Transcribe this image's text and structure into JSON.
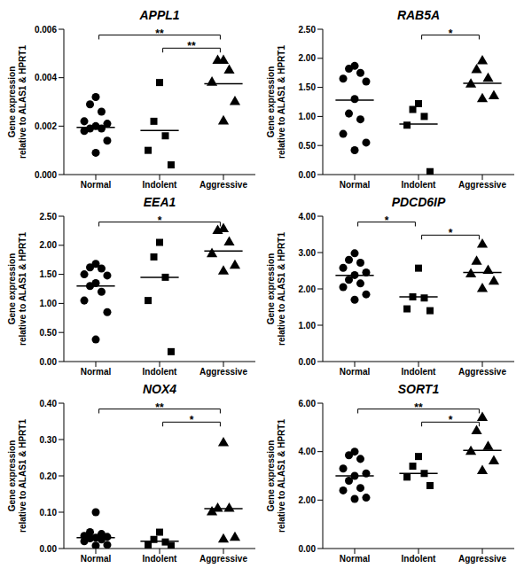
{
  "chart_data": [
    {
      "type": "scatter",
      "title": "APPL1",
      "ylabel": [
        "Gene expression",
        "relative to ALAS1 & HPRT1"
      ],
      "categories": [
        "Normal",
        "Indolent",
        "Aggressive"
      ],
      "markers": [
        "circle",
        "square",
        "triangle"
      ],
      "color": "#000000",
      "values": [
        [
          0.0032,
          0.0029,
          0.0026,
          0.0022,
          0.0021,
          0.002,
          0.0019,
          0.0019,
          0.0018,
          0.0014,
          0.0009
        ],
        [
          0.0038,
          0.0022,
          0.0016,
          0.001,
          0.0004
        ],
        [
          0.0047,
          0.0047,
          0.0043,
          0.0038,
          0.003,
          0.0022
        ]
      ],
      "medians": [
        0.00195,
        0.00182,
        0.00375
      ],
      "significance": [
        {
          "from": "Normal",
          "to": "Aggressive",
          "label": "**"
        },
        {
          "from": "Indolent",
          "to": "Aggressive",
          "label": "**"
        }
      ],
      "ylim": [
        0,
        0.006
      ],
      "yticks": [
        {
          "value": 0,
          "label": "0.000"
        },
        {
          "value": 0.002,
          "label": "0.002"
        },
        {
          "value": 0.004,
          "label": "0.004"
        },
        {
          "value": 0.006,
          "label": "0.006"
        }
      ]
    },
    {
      "type": "scatter",
      "title": "RAB5A",
      "ylabel": [
        "Gene expression",
        "relative to ALAS1 & HPRT1"
      ],
      "categories": [
        "Normal",
        "Indolent",
        "Aggressive"
      ],
      "markers": [
        "circle",
        "square",
        "triangle"
      ],
      "color": "#000000",
      "values": [
        [
          1.87,
          1.82,
          1.75,
          1.65,
          1.6,
          1.3,
          1.05,
          0.95,
          0.7,
          0.55,
          0.42
        ],
        [
          1.22,
          1.12,
          1.0,
          0.85,
          0.05
        ],
        [
          1.95,
          1.8,
          1.65,
          1.55,
          1.35,
          1.3
        ]
      ],
      "medians": [
        1.28,
        0.87,
        1.57
      ],
      "significance": [
        {
          "from": "Indolent",
          "to": "Aggressive",
          "label": "*"
        }
      ],
      "ylim": [
        0,
        2.5
      ],
      "yticks": [
        {
          "value": 0,
          "label": "0.00"
        },
        {
          "value": 0.5,
          "label": "0.50"
        },
        {
          "value": 1,
          "label": "1.00"
        },
        {
          "value": 1.5,
          "label": "1.50"
        },
        {
          "value": 2,
          "label": "2.00"
        },
        {
          "value": 2.5,
          "label": "2.50"
        }
      ]
    },
    {
      "type": "scatter",
      "title": "EEA1",
      "ylabel": [
        "Gene expression",
        "relative to ALAS1 & HPRT1"
      ],
      "categories": [
        "Normal",
        "Indolent",
        "Aggressive"
      ],
      "markers": [
        "circle",
        "square",
        "triangle"
      ],
      "color": "#000000",
      "values": [
        [
          1.68,
          1.62,
          1.6,
          1.5,
          1.48,
          1.35,
          1.3,
          1.2,
          1.05,
          0.85,
          0.38
        ],
        [
          2.05,
          1.8,
          1.45,
          1.05,
          0.17
        ],
        [
          2.28,
          2.25,
          2.05,
          1.85,
          1.65,
          1.55
        ]
      ],
      "medians": [
        1.3,
        1.45,
        1.9
      ],
      "significance": [
        {
          "from": "Normal",
          "to": "Aggressive",
          "label": "*"
        }
      ],
      "ylim": [
        0,
        2.5
      ],
      "yticks": [
        {
          "value": 0,
          "label": "0.00"
        },
        {
          "value": 0.5,
          "label": "0.50"
        },
        {
          "value": 1,
          "label": "1.00"
        },
        {
          "value": 1.5,
          "label": "1.50"
        },
        {
          "value": 2,
          "label": "2.00"
        },
        {
          "value": 2.5,
          "label": "2.50"
        }
      ]
    },
    {
      "type": "scatter",
      "title": "PDCD6IP",
      "ylabel": [
        "Gene expression",
        "relative to ALAS1 & HPRT1"
      ],
      "categories": [
        "Normal",
        "Indolent",
        "Aggressive"
      ],
      "markers": [
        "circle",
        "square",
        "triangle"
      ],
      "color": "#000000",
      "values": [
        [
          2.98,
          2.8,
          2.72,
          2.58,
          2.45,
          2.38,
          2.25,
          2.15,
          2.05,
          1.85,
          1.7
        ],
        [
          2.57,
          1.78,
          1.75,
          1.45,
          1.4
        ],
        [
          3.22,
          2.75,
          2.5,
          2.4,
          2.2,
          2.0
        ]
      ],
      "medians": [
        2.37,
        1.78,
        2.45
      ],
      "significance": [
        {
          "from": "Normal",
          "to": "Indolent",
          "label": "*"
        },
        {
          "from": "Indolent",
          "to": "Aggressive",
          "label": "*"
        }
      ],
      "ylim": [
        0,
        4
      ],
      "yticks": [
        {
          "value": 0,
          "label": "0.00"
        },
        {
          "value": 1,
          "label": "1.00"
        },
        {
          "value": 2,
          "label": "2.00"
        },
        {
          "value": 3,
          "label": "3.00"
        },
        {
          "value": 4,
          "label": "4.00"
        }
      ]
    },
    {
      "type": "scatter",
      "title": "NOX4",
      "ylabel": [
        "Gene expression",
        "relative to ALAS1 & HPRT1"
      ],
      "categories": [
        "Normal",
        "Indolent",
        "Aggressive"
      ],
      "markers": [
        "circle",
        "square",
        "triangle"
      ],
      "color": "#000000",
      "values": [
        [
          0.1,
          0.045,
          0.04,
          0.035,
          0.032,
          0.03,
          0.028,
          0.025,
          0.02,
          0.01,
          0.008
        ],
        [
          0.045,
          0.025,
          0.018,
          0.01,
          0.008
        ],
        [
          0.29,
          0.11,
          0.11,
          0.1,
          0.03,
          0.025
        ]
      ],
      "medians": [
        0.03,
        0.02,
        0.11
      ],
      "significance": [
        {
          "from": "Normal",
          "to": "Aggressive",
          "label": "**"
        },
        {
          "from": "Indolent",
          "to": "Aggressive",
          "label": "*"
        }
      ],
      "ylim": [
        0,
        0.4
      ],
      "yticks": [
        {
          "value": 0,
          "label": "0.00"
        },
        {
          "value": 0.1,
          "label": "0.10"
        },
        {
          "value": 0.2,
          "label": "0.20"
        },
        {
          "value": 0.3,
          "label": "0.30"
        },
        {
          "value": 0.4,
          "label": "0.40"
        }
      ]
    },
    {
      "type": "scatter",
      "title": "SORT1",
      "ylabel": [
        "Gene expression",
        "relative to ALAS1 & HPRT1"
      ],
      "categories": [
        "Normal",
        "Indolent",
        "Aggressive"
      ],
      "markers": [
        "circle",
        "square",
        "triangle"
      ],
      "color": "#000000",
      "values": [
        [
          4.0,
          3.85,
          3.7,
          3.3,
          3.1,
          3.0,
          2.8,
          2.5,
          2.4,
          2.1,
          2.05
        ],
        [
          3.8,
          3.4,
          3.1,
          2.95,
          2.6
        ],
        [
          5.4,
          4.85,
          4.2,
          4.0,
          3.6,
          3.2
        ]
      ],
      "medians": [
        3.0,
        3.1,
        4.05
      ],
      "significance": [
        {
          "from": "Normal",
          "to": "Aggressive",
          "label": "**"
        },
        {
          "from": "Indolent",
          "to": "Aggressive",
          "label": "*"
        }
      ],
      "ylim": [
        0,
        6
      ],
      "yticks": [
        {
          "value": 0,
          "label": "0.00"
        },
        {
          "value": 2,
          "label": "2.00"
        },
        {
          "value": 4,
          "label": "4.00"
        },
        {
          "value": 6,
          "label": "6.00"
        }
      ]
    }
  ]
}
